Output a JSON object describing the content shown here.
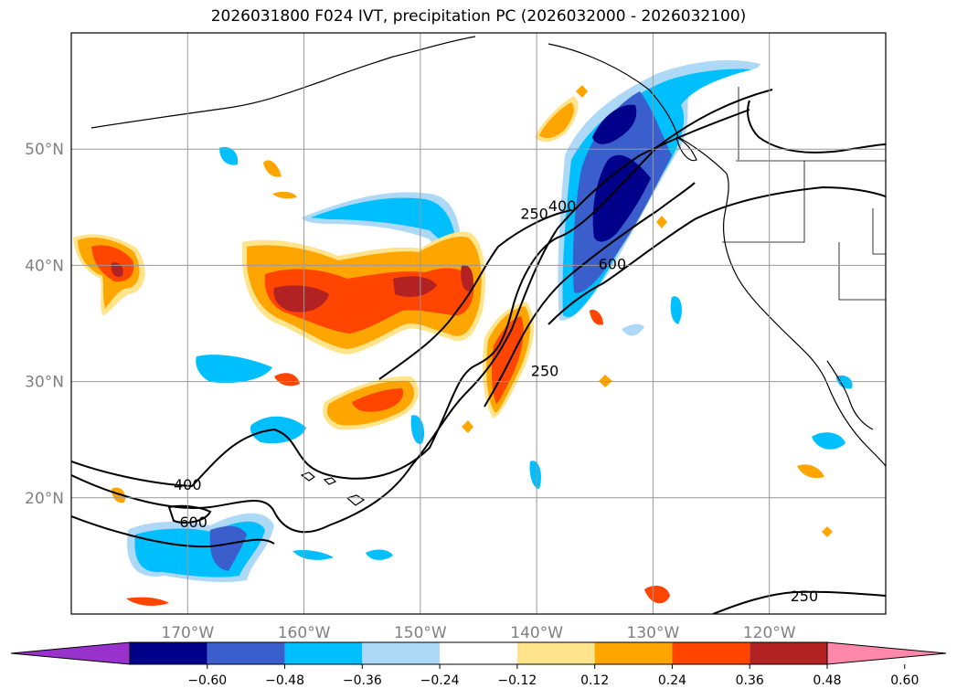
{
  "title": "2026031800 F024 IVT, precipitation PC (2026032000 - 2026032100)",
  "map": {
    "lon_range": [
      -180,
      -110
    ],
    "lat_range": [
      10,
      60
    ],
    "lat_ticks": [
      {
        "value": 20,
        "label": "20°N"
      },
      {
        "value": 30,
        "label": "30°N"
      },
      {
        "value": 40,
        "label": "40°N"
      },
      {
        "value": 50,
        "label": "50°N"
      }
    ],
    "lon_ticks": [
      {
        "value": -170,
        "label": "170°W"
      },
      {
        "value": -160,
        "label": "160°W"
      },
      {
        "value": -150,
        "label": "150°W"
      },
      {
        "value": -140,
        "label": "140°W"
      },
      {
        "value": -130,
        "label": "130°W"
      },
      {
        "value": -120,
        "label": "120°W"
      }
    ],
    "ivt_contour_labels": [
      {
        "text": "250",
        "lon": -140.2,
        "lat": 44.3
      },
      {
        "text": "400",
        "lon": -137.8,
        "lat": 45.0
      },
      {
        "text": "600",
        "lon": -133.5,
        "lat": 40.0
      },
      {
        "text": "250",
        "lon": -139.3,
        "lat": 30.8
      },
      {
        "text": "400",
        "lon": -170.0,
        "lat": 21.0
      },
      {
        "text": "600",
        "lon": -169.5,
        "lat": 17.8
      },
      {
        "text": "250",
        "lon": -117.0,
        "lat": 11.4
      }
    ]
  },
  "colorbar": {
    "levels": [
      "−0.60",
      "−0.48",
      "−0.36",
      "−0.24",
      "−0.12",
      "0.12",
      "0.24",
      "0.36",
      "0.48",
      "0.60"
    ],
    "colors": [
      "#9932cc",
      "#00008b",
      "#3a5fcd",
      "#00bfff",
      "#add8f6",
      "#ffffff",
      "#ffe48c",
      "#ffa500",
      "#ff4500",
      "#b22222",
      "#ff88aa"
    ]
  }
}
